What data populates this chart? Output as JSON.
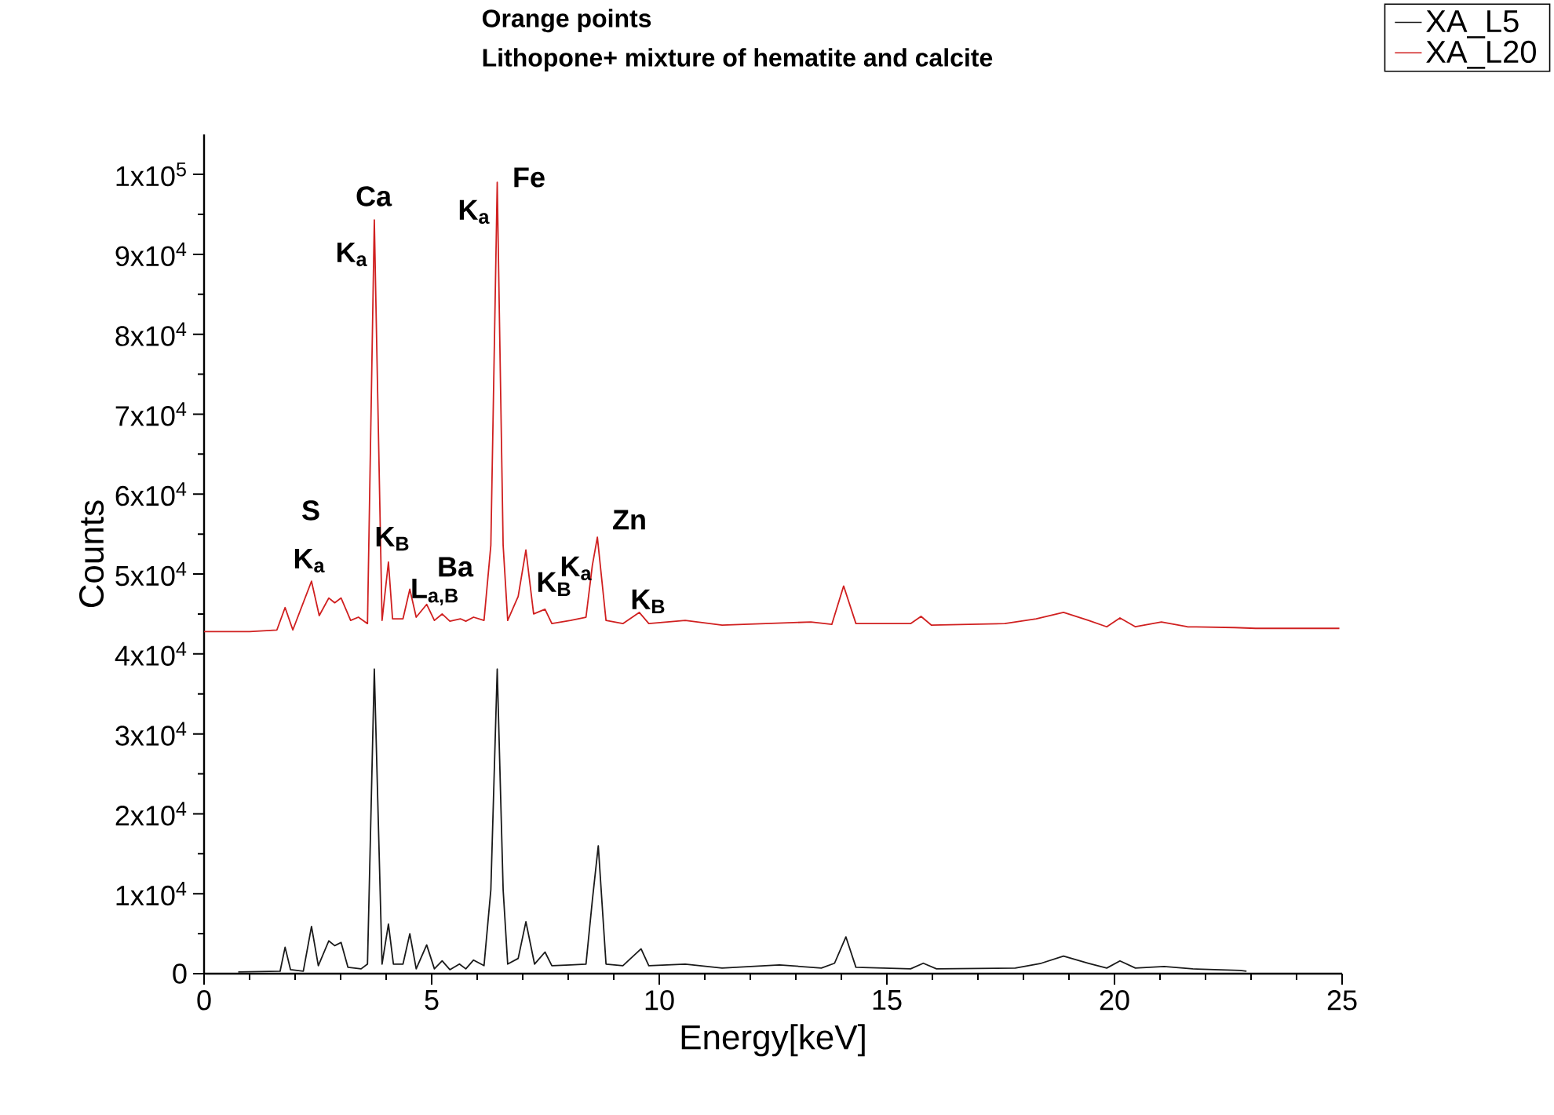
{
  "chart_data": {
    "type": "line",
    "title": "Orange points",
    "subtitle": "Lithopone+ mixture of hematite and calcite",
    "xlabel": "Energy[keV]",
    "ylabel": "Counts",
    "xlim": [
      0,
      25
    ],
    "xticks": [
      0,
      5,
      10,
      15,
      20,
      25
    ],
    "ylim": [
      0,
      105000
    ],
    "yticks": [
      {
        "value": 0,
        "label": "0"
      },
      {
        "value": 10000,
        "label": "1x10$^{4}$"
      },
      {
        "value": 20000,
        "label": "2x10$^{4}$"
      },
      {
        "value": 30000,
        "label": "3x10$^{4}$"
      },
      {
        "value": 40000,
        "label": "4x10$^{4}$"
      },
      {
        "value": 50000,
        "label": "5x10$^{4}$"
      },
      {
        "value": 60000,
        "label": "6x10$^{4}$"
      },
      {
        "value": 70000,
        "label": "7x10$^{4}$"
      },
      {
        "value": 80000,
        "label": "8x10$^{4}$"
      },
      {
        "value": 90000,
        "label": "9x10$^{4}$"
      },
      {
        "value": 100000,
        "label": "1x10$^{5}$"
      }
    ],
    "legend": "top right",
    "series": [
      {
        "name": "XA_L5",
        "color": "#1a1a1a",
        "x": [
          0.75,
          1.67,
          1.78,
          1.9,
          2.18,
          2.36,
          2.51,
          2.74,
          2.87,
          3.01,
          3.16,
          3.45,
          3.59,
          3.74,
          3.91,
          4.05,
          4.16,
          4.37,
          4.52,
          4.66,
          4.89,
          5.06,
          5.23,
          5.4,
          5.61,
          5.75,
          5.92,
          6.15,
          6.3,
          6.44,
          6.57,
          6.67,
          6.9,
          7.07,
          7.26,
          7.49,
          7.64,
          8.05,
          8.39,
          8.53,
          8.66,
          8.83,
          9.2,
          9.6,
          9.77,
          10.57,
          11.38,
          12.64,
          13.56,
          13.85,
          14.1,
          14.32,
          15.52,
          15.8,
          16.09,
          17.82,
          18.39,
          18.88,
          19.43,
          19.83,
          20.12,
          20.46,
          21.09,
          21.72,
          22.76,
          22.9
        ],
        "values": [
          200,
          300,
          3300,
          500,
          300,
          5900,
          1000,
          4100,
          3500,
          3900,
          800,
          600,
          1200,
          38100,
          1200,
          6200,
          1200,
          1200,
          5000,
          600,
          3600,
          600,
          1600,
          500,
          1200,
          600,
          1700,
          1000,
          10500,
          38100,
          10500,
          1200,
          1900,
          6500,
          1200,
          2700,
          1000,
          1100,
          1200,
          9200,
          16000,
          1200,
          1000,
          3100,
          1000,
          1200,
          700,
          1100,
          700,
          1300,
          4600,
          800,
          600,
          1300,
          600,
          700,
          1300,
          2200,
          1300,
          700,
          1600,
          700,
          900,
          600,
          400,
          300
        ]
      },
      {
        "name": "XA_L20",
        "color": "#d02020",
        "x": [
          0,
          1.0,
          1.6,
          1.78,
          1.95,
          2.36,
          2.53,
          2.74,
          2.87,
          3.01,
          3.22,
          3.39,
          3.59,
          3.74,
          3.91,
          4.05,
          4.14,
          4.37,
          4.52,
          4.66,
          4.89,
          5.06,
          5.23,
          5.4,
          5.63,
          5.75,
          5.92,
          6.15,
          6.3,
          6.44,
          6.57,
          6.67,
          6.9,
          7.07,
          7.24,
          7.49,
          7.64,
          8.05,
          8.39,
          8.53,
          8.64,
          8.83,
          9.2,
          9.56,
          9.77,
          10.57,
          11.38,
          13.33,
          13.79,
          14.05,
          14.32,
          15.52,
          15.75,
          15.98,
          17.59,
          18.28,
          18.88,
          19.43,
          19.83,
          20.12,
          20.46,
          21.03,
          21.6,
          22.64,
          23.1,
          24.94
        ],
        "values": [
          42800,
          42800,
          43000,
          45800,
          43000,
          49100,
          44800,
          47000,
          46400,
          47000,
          44200,
          44600,
          43800,
          94300,
          44200,
          51500,
          44400,
          44400,
          48100,
          44600,
          46200,
          44200,
          45000,
          44100,
          44400,
          44100,
          44600,
          44200,
          53600,
          99000,
          53600,
          44200,
          47200,
          53000,
          45000,
          45600,
          43800,
          44200,
          44600,
          51100,
          54600,
          44200,
          43800,
          45200,
          43800,
          44200,
          43600,
          44000,
          43700,
          48500,
          43800,
          43800,
          44700,
          43600,
          43800,
          44400,
          45200,
          44200,
          43400,
          44500,
          43400,
          44000,
          43400,
          43300,
          43200,
          43200
        ]
      }
    ],
    "annotations": [
      "Ca",
      "K$_{a}$",
      "Fe",
      "K$_{a}$",
      "S",
      "K$_{a}$",
      "K$_{B}$",
      "Ba",
      "L$_{a,B}$",
      "K$_{B}$",
      "Zn",
      "K$_{a}$",
      "K$_{B}$"
    ]
  }
}
